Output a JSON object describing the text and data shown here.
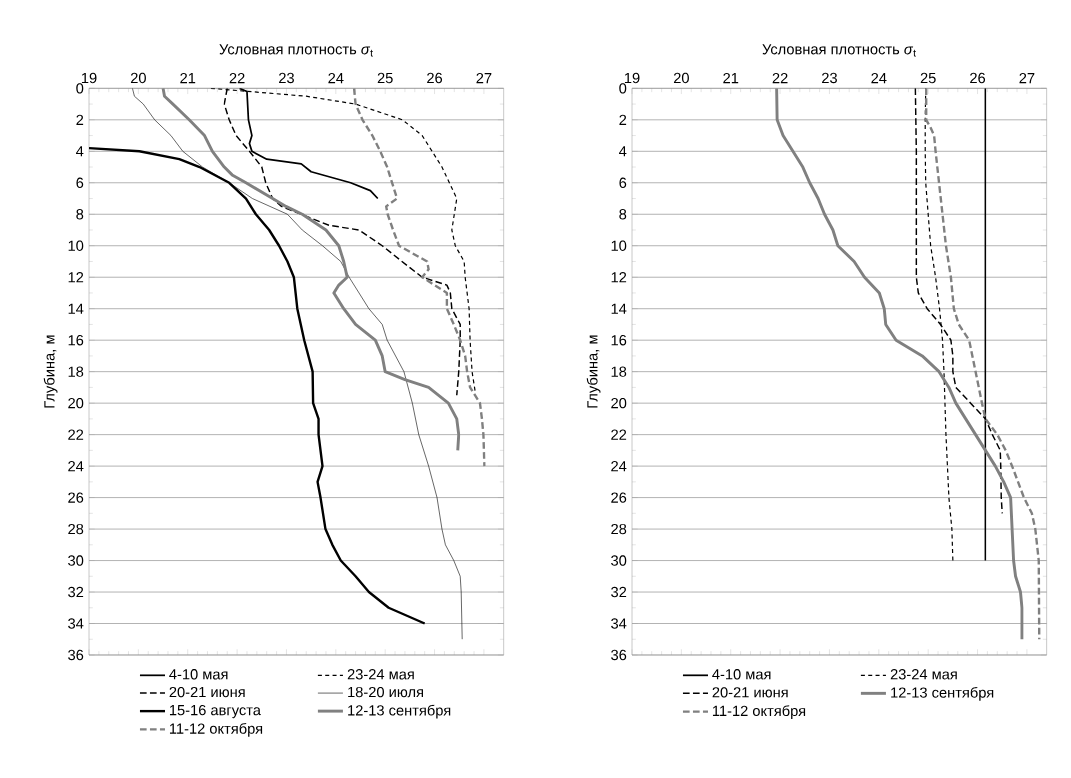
{
  "chart_data": [
    {
      "type": "line",
      "xlabel": "Условная плотность *σ*$_{t}$",
      "ylabel": "Глубина, м",
      "xlim": [
        19,
        27.4
      ],
      "ylim": [
        36,
        0
      ],
      "xticks": [
        19,
        20,
        21,
        22,
        23,
        24,
        25,
        26,
        27
      ],
      "yticks": [
        0,
        2,
        4,
        6,
        8,
        10,
        12,
        14,
        16,
        18,
        20,
        22,
        24,
        26,
        28,
        30,
        32,
        34,
        36
      ],
      "grid": "y",
      "legend": "bottom",
      "series": [
        {
          "name": "4-10 мая",
          "color": "#000000",
          "line_style": "solid",
          "x": [
            22.05,
            22.2,
            22.23,
            22.3,
            22.25,
            22.3,
            22.6,
            23.3,
            23.5,
            24.3,
            24.7,
            24.85
          ],
          "values": [
            0,
            0.2,
            2,
            3,
            3.5,
            4,
            4.5,
            4.8,
            5.3,
            6,
            6.5,
            7
          ]
        },
        {
          "name": "23-24 мая",
          "color": "#000000",
          "line_style": "dotted",
          "x": [
            21.47,
            23.4,
            24.4,
            25.35,
            25.75,
            25.95,
            26.15,
            26.3,
            26.45,
            26.4,
            26.35,
            26.42,
            26.6,
            26.62,
            26.7,
            26.72,
            26.76,
            26.82
          ],
          "values": [
            0,
            0.5,
            1,
            2,
            3,
            4,
            5,
            6,
            7,
            8,
            9,
            10,
            11,
            12,
            14,
            16,
            18,
            19.2
          ]
        },
        {
          "name": "20-21 июня",
          "color": "#000000",
          "line_style": "dashed",
          "x": [
            21.8,
            21.74,
            21.84,
            21.98,
            22.25,
            22.5,
            22.58,
            22.72,
            22.9,
            23.3,
            23.86,
            24.47,
            24.94,
            25.34,
            25.75,
            26.25,
            26.32,
            26.35,
            26.52,
            26.52,
            26.49,
            26.45
          ],
          "values": [
            0,
            1,
            2,
            3,
            4,
            5,
            6,
            7,
            7.5,
            8,
            8.7,
            9,
            10,
            11,
            12,
            12.5,
            13,
            14,
            15,
            16,
            18,
            19.5
          ]
        },
        {
          "name": "18-20 июля",
          "color": "#000000",
          "line_style": "solid",
          "x": [
            19.88,
            19.92,
            20.1,
            20.33,
            20.66,
            20.9,
            21.3,
            21.84,
            22.31,
            23.02,
            23.32,
            23.73,
            24.1,
            24.27,
            24.47,
            24.67,
            24.94,
            25.04,
            25.38,
            25.55,
            25.68,
            25.88,
            26.05,
            26.15,
            26.22,
            26.39,
            26.52,
            26.54,
            26.56
          ],
          "values": [
            0,
            0.5,
            1,
            2,
            3,
            4,
            5,
            6,
            7,
            8,
            9,
            10,
            11,
            12,
            13,
            14,
            15,
            16,
            18,
            20,
            22,
            24,
            26,
            28,
            29,
            30,
            31,
            32,
            35
          ]
        },
        {
          "name": "15-16 августа",
          "color": "#000000",
          "line_style": "solid",
          "x": [
            19,
            20.02,
            20.83,
            21.24,
            21.84,
            22.18,
            22.38,
            22.65,
            22.85,
            23.02,
            23.15,
            23.22,
            23.36,
            23.53,
            23.54,
            23.65,
            23.65,
            23.73,
            23.63,
            23.69,
            23.79,
            23.93,
            24.1,
            24.4,
            24.67,
            25.07,
            25.8
          ],
          "values": [
            3.8,
            4,
            4.5,
            5,
            6,
            7,
            8,
            9,
            10,
            11,
            12,
            14,
            16,
            18,
            20,
            21,
            22,
            24,
            25,
            26,
            28,
            29,
            30,
            31,
            32,
            33,
            34
          ]
        },
        {
          "name": "12-13 сентября",
          "color": "#808080",
          "line_style": "solid",
          "x": [
            20.5,
            20.53,
            20.7,
            21.03,
            21.34,
            21.5,
            21.74,
            21.9,
            22.18,
            22.72,
            22.99,
            23.32,
            23.8,
            24.06,
            24.16,
            24.23,
            24.06,
            23.96,
            24.16,
            24.4,
            24.8,
            24.94,
            25.0,
            25.4,
            25.88,
            26.28,
            26.45,
            26.49,
            26.47
          ],
          "values": [
            0,
            0.5,
            1,
            2,
            3,
            4,
            5,
            5.5,
            6,
            7,
            7.5,
            8,
            9,
            10,
            11,
            12,
            12.5,
            13,
            14,
            15,
            16,
            17,
            18,
            18.5,
            19,
            20,
            21,
            22,
            23
          ]
        },
        {
          "name": "11-12 октября",
          "color": "#808080",
          "line_style": "dashed",
          "x": [
            24.37,
            24.4,
            24.54,
            24.74,
            24.9,
            25.04,
            25.14,
            25.24,
            25.02,
            25.05,
            25.16,
            25.28,
            25.85,
            25.88,
            25.75,
            26.25,
            26.25,
            26.39,
            26.52,
            26.62,
            26.66,
            26.72,
            26.92,
            26.96,
            26.99,
            27.01
          ],
          "values": [
            0,
            1,
            2,
            3,
            4,
            5,
            6,
            7,
            7.5,
            8,
            9,
            10,
            11,
            11.5,
            12,
            13,
            14,
            15,
            16,
            17,
            18,
            19,
            20,
            21,
            22,
            24
          ]
        }
      ]
    },
    {
      "type": "line",
      "xlabel": "Условная плотность *σ*$_{t}$",
      "ylabel": "Глубина, м",
      "xlim": [
        19,
        27.4
      ],
      "ylim": [
        36,
        0
      ],
      "xticks": [
        19,
        20,
        21,
        22,
        23,
        24,
        25,
        26,
        27
      ],
      "yticks": [
        0,
        2,
        4,
        6,
        8,
        10,
        12,
        14,
        16,
        18,
        20,
        22,
        24,
        26,
        28,
        30,
        32,
        34,
        36
      ],
      "grid": "y",
      "legend": "bottom",
      "series": [
        {
          "name": "4-10 мая",
          "color": "#000000",
          "line_style": "solid",
          "x": [
            26.16,
            26.16
          ],
          "values": [
            0,
            30
          ]
        },
        {
          "name": "23-24 мая",
          "color": "#000000",
          "line_style": "dotted",
          "x": [
            24.95,
            24.94,
            24.94,
            24.95,
            25.0,
            25.05,
            25.15,
            25.23,
            25.29,
            25.32,
            25.34,
            25.36,
            25.39,
            25.42,
            25.48,
            25.5
          ],
          "values": [
            0,
            2,
            4,
            6,
            8,
            10,
            12,
            14,
            16,
            18,
            20,
            22,
            24,
            26,
            28,
            30
          ]
        },
        {
          "name": "20-21 июня",
          "color": "#000000",
          "line_style": "dashed",
          "x": [
            24.74,
            24.75,
            24.76,
            24.76,
            24.8,
            24.98,
            25.25,
            25.46,
            25.5,
            25.5,
            25.56,
            25.86,
            26.16,
            26.3,
            26.46,
            26.47,
            26.48,
            26.5
          ],
          "values": [
            0,
            2,
            4,
            12,
            13,
            14,
            15,
            16,
            17,
            18,
            19,
            20,
            21,
            22,
            23,
            24,
            26,
            27
          ]
        },
        {
          "name": "12-13 сентября",
          "color": "#808080",
          "line_style": "solid",
          "x": [
            21.93,
            21.94,
            22.06,
            22.26,
            22.46,
            22.6,
            22.77,
            22.9,
            23.07,
            23.17,
            23.5,
            23.71,
            24.01,
            24.11,
            24.14,
            24.35,
            24.88,
            25.22,
            25.42,
            25.56,
            25.76,
            25.96,
            26.16,
            26.36,
            26.53,
            26.67,
            26.7,
            26.73,
            26.77,
            26.87,
            26.9,
            26.9
          ],
          "values": [
            0,
            2,
            3,
            4,
            5,
            6,
            7,
            8,
            9,
            10,
            11,
            12,
            13,
            14,
            15,
            16,
            17,
            18,
            19,
            20,
            21,
            22,
            23,
            24,
            25,
            26,
            28,
            30,
            31,
            32,
            33,
            35
          ]
        },
        {
          "name": "11-12 октября",
          "color": "#808080",
          "line_style": "dashed",
          "x": [
            24.96,
            24.96,
            25.05,
            25.12,
            25.15,
            25.22,
            25.29,
            25.36,
            25.46,
            25.52,
            25.62,
            25.83,
            25.96,
            26.09,
            26.16,
            26.4,
            26.57,
            26.7,
            26.94,
            27.1,
            27.17,
            27.24,
            27.25
          ],
          "values": [
            0,
            2,
            2.5,
            3,
            4,
            6,
            8,
            10,
            12,
            14,
            15,
            16,
            18,
            20,
            21,
            22,
            23,
            24,
            26,
            27,
            28,
            30,
            35
          ]
        }
      ]
    }
  ]
}
